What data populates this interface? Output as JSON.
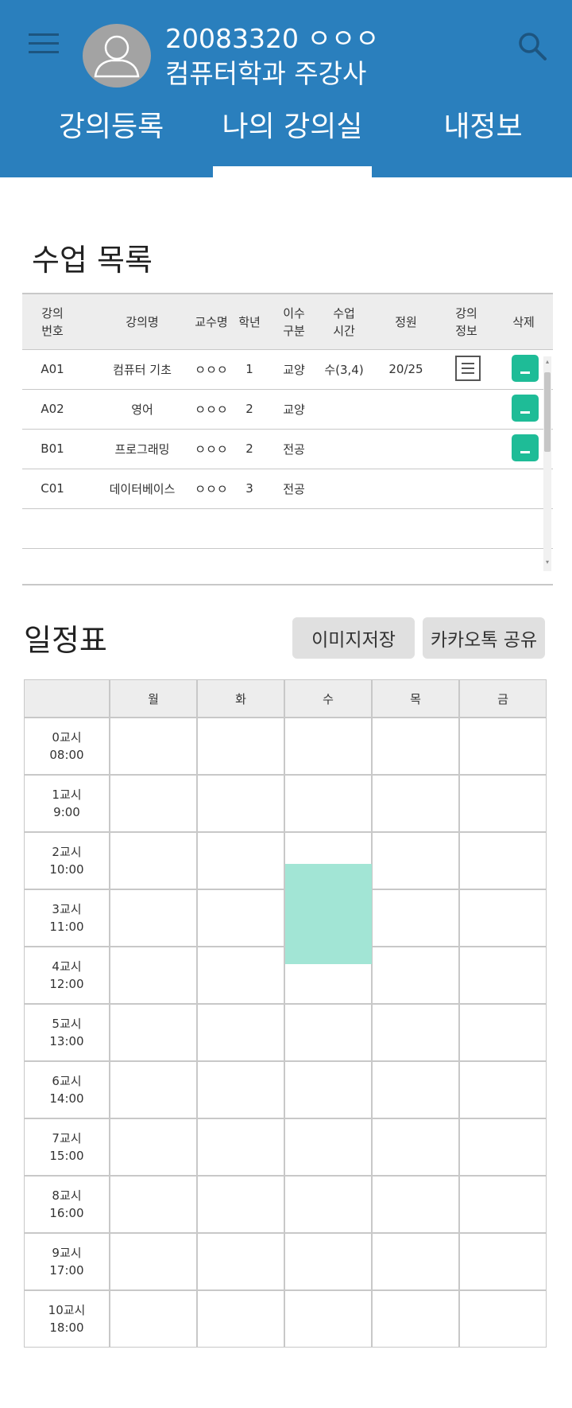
{
  "header": {
    "user_id": "20083320 ㅇㅇㅇ",
    "department": "컴퓨터학과 주강사",
    "brand_color": "#2a7fbd"
  },
  "icons": [
    "menu-icon",
    "avatar-icon",
    "search-icon",
    "list-icon",
    "minus-icon"
  ],
  "tabs": [
    {
      "label": "강의등록"
    },
    {
      "label": "나의 강의실",
      "active": true
    },
    {
      "label": "내정보"
    }
  ],
  "course_list": {
    "title": "수업 목록",
    "columns": [
      "강의\n번호",
      "강의명",
      "교수명",
      "학년",
      "이수\n구분",
      "수업\n시간",
      "정원",
      "강의\n정보",
      "삭제"
    ],
    "rows": [
      {
        "code": "A01",
        "name": "컴퓨터 기초",
        "prof": "ㅇㅇㅇ",
        "grade": "1",
        "type": "교양",
        "time": "수(3,4)",
        "capacity": "20/25",
        "has_info": true,
        "has_delete": true
      },
      {
        "code": "A02",
        "name": "영어",
        "prof": "ㅇㅇㅇ",
        "grade": "2",
        "type": "교양",
        "time": "",
        "capacity": "",
        "has_info": false,
        "has_delete": true
      },
      {
        "code": "B01",
        "name": "프로그래밍",
        "prof": "ㅇㅇㅇ",
        "grade": "2",
        "type": "전공",
        "time": "",
        "capacity": "",
        "has_info": false,
        "has_delete": true
      },
      {
        "code": "C01",
        "name": "데이터베이스",
        "prof": "ㅇㅇㅇ",
        "grade": "3",
        "type": "전공",
        "time": "",
        "capacity": "",
        "has_info": false,
        "has_delete": false
      }
    ],
    "accent_color": "#1ebc97"
  },
  "schedule": {
    "title": "일정표",
    "save_label": "이미지저장",
    "share_label": "카카오톡 공유",
    "days": [
      "월",
      "화",
      "수",
      "목",
      "금"
    ],
    "periods": [
      {
        "label": "0교시",
        "time": "08:00"
      },
      {
        "label": "1교시",
        "time": "9:00"
      },
      {
        "label": "2교시",
        "time": "10:00"
      },
      {
        "label": "3교시",
        "time": "11:00"
      },
      {
        "label": "4교시",
        "time": "12:00"
      },
      {
        "label": "5교시",
        "time": "13:00"
      },
      {
        "label": "6교시",
        "time": "14:00"
      },
      {
        "label": "7교시",
        "time": "15:00"
      },
      {
        "label": "8교시",
        "time": "16:00"
      },
      {
        "label": "9교시",
        "time": "17:00"
      },
      {
        "label": "10교시",
        "time": "18:00"
      }
    ],
    "blocks": [
      {
        "day": "수",
        "start_period": 2.55,
        "end_period": 4.3,
        "color": "#a2e5d5"
      }
    ]
  }
}
